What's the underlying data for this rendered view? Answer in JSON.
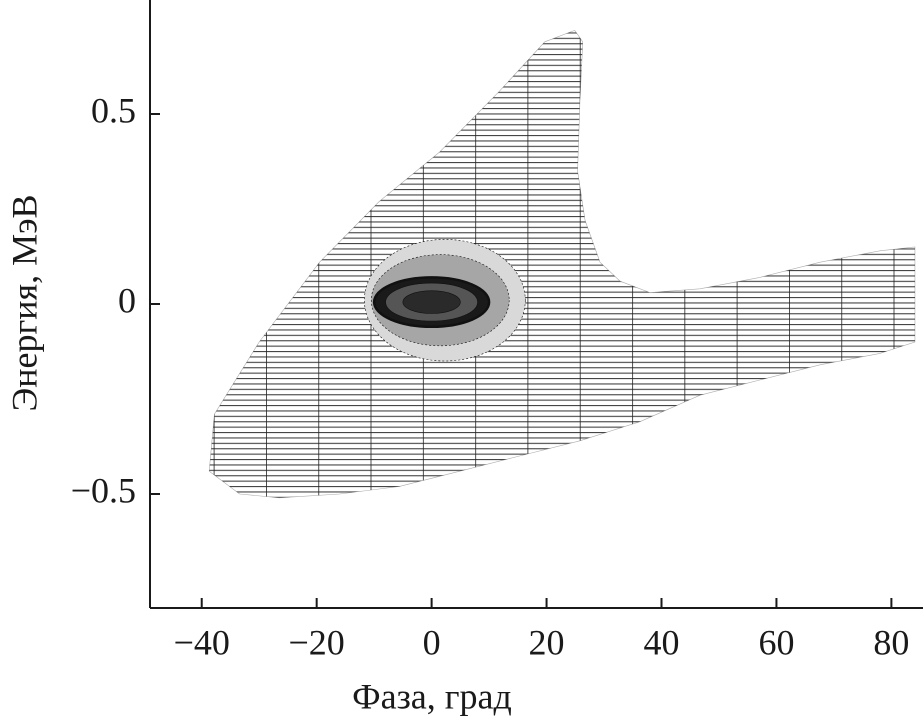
{
  "chart_data": {
    "type": "contour",
    "x_label": "Фаза, град",
    "y_label": "Энергия, МэВ",
    "xlim": [
      -49,
      85.5
    ],
    "ylim": [
      -0.8,
      0.8
    ],
    "xticks": [
      {
        "value": -40,
        "label": "−40"
      },
      {
        "value": -20,
        "label": "−20"
      },
      0,
      20,
      40,
      60,
      80
    ],
    "yticks": [
      {
        "value": -0.5,
        "label": "−0.5"
      },
      0,
      0.5
    ],
    "separatrix": {
      "color": "#333333",
      "x": [
        -38.7,
        -37.8,
        -30.0,
        -19.5,
        -9.1,
        1.4,
        11.8,
        19.7,
        24.9,
        26.3,
        25.8,
        25.4,
        26.7,
        29.3,
        32.8,
        38.0,
        46.7,
        57.1,
        67.6,
        78.0,
        84.1,
        84.1,
        78.0,
        67.6,
        57.1,
        46.7,
        36.2,
        25.8,
        15.3,
        4.9,
        -5.6,
        -16.0,
        -26.5,
        -33.4
      ],
      "y": [
        -0.44,
        -0.29,
        -0.1,
        0.11,
        0.27,
        0.4,
        0.56,
        0.69,
        0.72,
        0.69,
        0.53,
        0.35,
        0.22,
        0.11,
        0.06,
        0.03,
        0.04,
        0.07,
        0.11,
        0.14,
        0.15,
        -0.1,
        -0.13,
        -0.16,
        -0.2,
        -0.24,
        -0.31,
        -0.36,
        -0.4,
        -0.44,
        -0.48,
        -0.5,
        -0.51,
        -0.5
      ]
    },
    "beam": [
      {
        "cx": 2.3,
        "cy": 0.01,
        "rx": 14,
        "ry": 0.16,
        "color": "#d9d9d9"
      },
      {
        "cx": 1.5,
        "cy": 0.01,
        "rx": 12,
        "ry": 0.12,
        "color": "#a6a6a6"
      },
      {
        "cx": 0,
        "cy": 0.005,
        "rx": 10,
        "ry": 0.065,
        "color": "#1a1a1a"
      },
      {
        "cx": 0,
        "cy": 0.005,
        "rx": 8,
        "ry": 0.05,
        "color": "#555555"
      },
      {
        "cx": 0,
        "cy": 0.005,
        "rx": 5,
        "ry": 0.03,
        "color": "#2a2a2a"
      }
    ]
  }
}
